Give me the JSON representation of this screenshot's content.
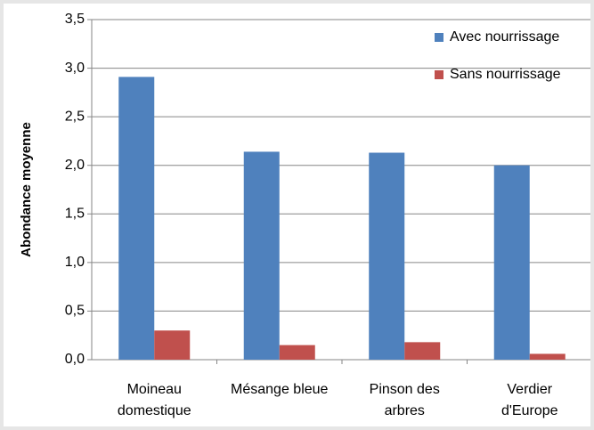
{
  "chart_data": {
    "type": "bar",
    "ylabel": "Abondance moyenne",
    "categories": [
      "Moineau domestique",
      "Mésange bleue",
      "Pinson des arbres",
      "Verdier d'Europe"
    ],
    "series": [
      {
        "name": "Avec nourrissage",
        "color": "#4f81bd",
        "values": [
          2.91,
          2.14,
          2.13,
          2.0
        ]
      },
      {
        "name": "Sans nourrissage",
        "color": "#c0504d",
        "values": [
          0.3,
          0.15,
          0.18,
          0.06
        ]
      }
    ],
    "ylim": [
      0,
      3.5
    ],
    "yticks": [
      {
        "value": 0,
        "label": "0,0"
      },
      {
        "value": 0.5,
        "label": "0,5"
      },
      {
        "value": 1,
        "label": "1,0"
      },
      {
        "value": 1.5,
        "label": "1,5"
      },
      {
        "value": 2,
        "label": "2,0"
      },
      {
        "value": 2.5,
        "label": "2,5"
      },
      {
        "value": 3,
        "label": "3,0"
      },
      {
        "value": 3.5,
        "label": "3,5"
      }
    ],
    "grid": true,
    "legend": "upper right"
  }
}
